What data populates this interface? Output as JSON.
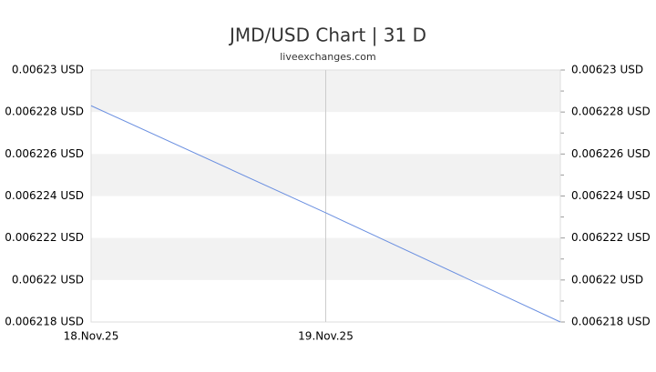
{
  "chart_data": {
    "type": "line",
    "title": "JMD/USD Chart | 31 D",
    "subtitle": "liveexchanges.com",
    "categories": [
      "18.Nov.25",
      "19.Nov.25",
      null
    ],
    "series": [
      {
        "name": "JMD/USD",
        "color": "#6a8fe0",
        "values": [
          0.0062283,
          0.0062232,
          0.006218
        ]
      }
    ],
    "ylim": [
      0.006218,
      0.00623
    ],
    "yticks": [
      {
        "value": 0.00623,
        "label": "0.00623 USD"
      },
      {
        "value": 0.006228,
        "label": "0.006228 USD"
      },
      {
        "value": 0.006226,
        "label": "0.006226 USD"
      },
      {
        "value": 0.006224,
        "label": "0.006224 USD"
      },
      {
        "value": 0.006222,
        "label": "0.006222 USD"
      },
      {
        "value": 0.00622,
        "label": "0.00622 USD"
      },
      {
        "value": 0.006218,
        "label": "0.006218 USD"
      }
    ],
    "grid": true,
    "band_color": "#f2f2f2"
  }
}
